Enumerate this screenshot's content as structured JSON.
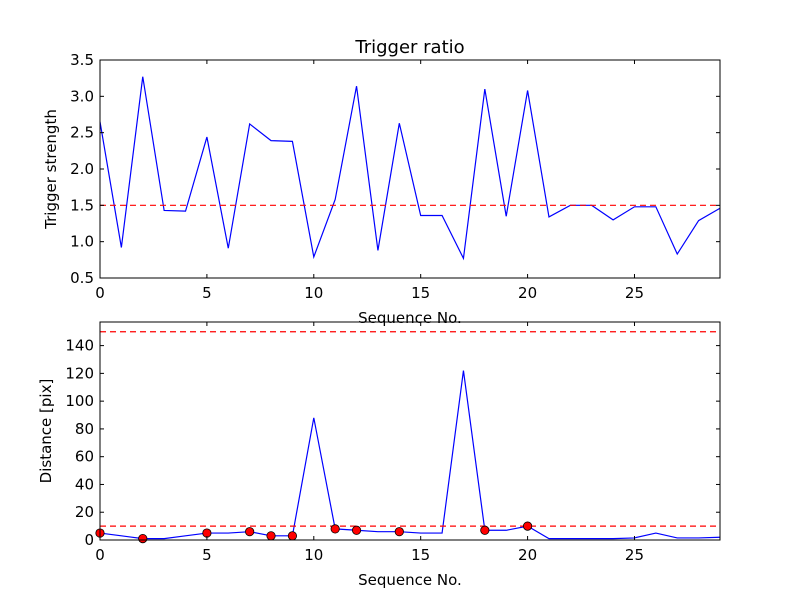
{
  "chart_data": [
    {
      "type": "line",
      "title": "Trigger ratio",
      "xlabel": "Sequence No.",
      "ylabel": "Trigger strength",
      "xlim": [
        0,
        29
      ],
      "ylim": [
        0.5,
        3.5
      ],
      "xticks": [
        0,
        5,
        10,
        15,
        20,
        25
      ],
      "yticks": [
        0.5,
        1.0,
        1.5,
        2.0,
        2.5,
        3.0,
        3.5
      ],
      "xtick_labels": [
        "0",
        "5",
        "10",
        "15",
        "20",
        "25"
      ],
      "ytick_labels": [
        "0.5",
        "1.0",
        "1.5",
        "2.0",
        "2.5",
        "3.0",
        "3.5"
      ],
      "series": [
        {
          "color": "#0000ff",
          "x": [
            0,
            1,
            2,
            3,
            4,
            5,
            6,
            7,
            8,
            9,
            10,
            11,
            12,
            13,
            14,
            15,
            16,
            17,
            18,
            19,
            20,
            21,
            22,
            23,
            24,
            25,
            26,
            27,
            28,
            29
          ],
          "y": [
            2.65,
            0.92,
            3.27,
            1.43,
            1.42,
            2.44,
            0.91,
            2.62,
            2.39,
            2.38,
            0.79,
            1.58,
            3.14,
            0.88,
            2.63,
            1.36,
            1.36,
            0.77,
            3.1,
            1.35,
            3.08,
            1.34,
            1.5,
            1.5,
            1.3,
            1.48,
            1.48,
            0.83,
            1.29,
            1.46
          ]
        }
      ],
      "hlines": [
        {
          "y": 1.5,
          "color": "#ff0000",
          "style": "dashed"
        }
      ]
    },
    {
      "type": "line",
      "title": "",
      "xlabel": "Sequence No.",
      "ylabel": "Distance [pix]",
      "xlim": [
        0,
        29
      ],
      "ylim": [
        0,
        157
      ],
      "xticks": [
        0,
        5,
        10,
        15,
        20,
        25
      ],
      "yticks": [
        0,
        20,
        40,
        60,
        80,
        100,
        120,
        140
      ],
      "xtick_labels": [
        "0",
        "5",
        "10",
        "15",
        "20",
        "25"
      ],
      "ytick_labels": [
        "0",
        "20",
        "40",
        "60",
        "80",
        "100",
        "120",
        "140"
      ],
      "series": [
        {
          "color": "#0000ff",
          "x": [
            0,
            1,
            2,
            3,
            4,
            5,
            6,
            7,
            8,
            9,
            10,
            11,
            12,
            13,
            14,
            15,
            16,
            17,
            18,
            19,
            20,
            21,
            22,
            23,
            24,
            25,
            26,
            27,
            28,
            29
          ],
          "y": [
            5,
            3,
            1,
            1,
            3,
            5,
            5,
            6,
            3,
            3,
            88,
            8,
            7,
            6,
            6,
            5,
            5,
            122,
            7,
            7,
            10,
            1,
            1,
            1,
            1,
            1.5,
            5,
            1.5,
            1.5,
            2
          ]
        }
      ],
      "markers": {
        "color": "#ff0000",
        "x": [
          0,
          2,
          5,
          7,
          8,
          9,
          11,
          12,
          14,
          18,
          20
        ],
        "y": [
          5,
          1,
          5,
          6,
          3,
          3,
          8,
          7,
          6,
          7,
          10
        ]
      },
      "hlines": [
        {
          "y": 150,
          "color": "#ff0000",
          "style": "dashed"
        },
        {
          "y": 10,
          "color": "#ff0000",
          "style": "dashed"
        }
      ]
    }
  ]
}
